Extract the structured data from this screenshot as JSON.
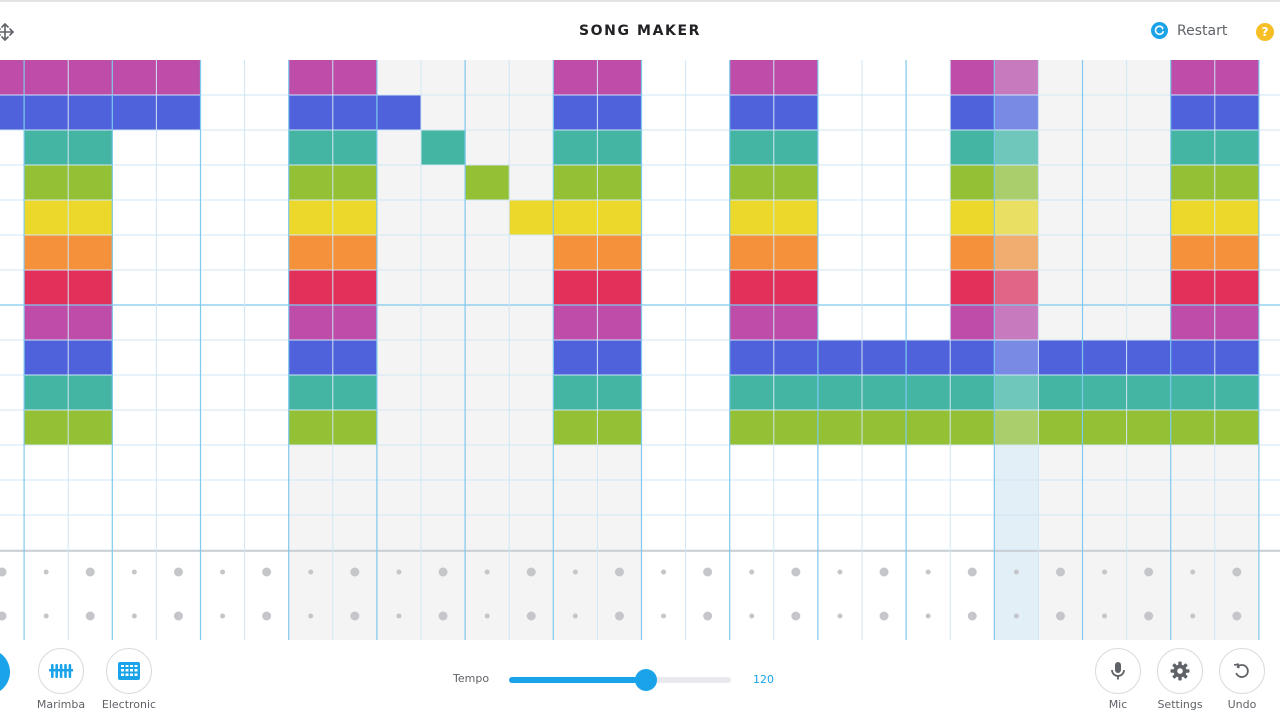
{
  "header": {
    "title": "SONG MAKER",
    "restart_label": "Restart",
    "help_symbol": "?"
  },
  "grid": {
    "columns": 29,
    "melody_rows": 14,
    "rhythm_rows": 2,
    "column_shade_pattern": [
      "white",
      "white",
      "white",
      "white",
      "white",
      "white",
      "white",
      "grey",
      "grey",
      "grey",
      "grey",
      "grey",
      "grey",
      "grey",
      "grey",
      "white",
      "white",
      "white",
      "white",
      "white",
      "white",
      "white",
      "white",
      "grey",
      "grey",
      "grey",
      "grey",
      "grey",
      "grey"
    ],
    "playhead_column": 23,
    "row_colors": [
      "#bd4da8",
      "#4f62dc",
      "#43b5a2",
      "#93c034",
      "#ecd82a",
      "#f6913b",
      "#e1315a",
      "#bd4da8",
      "#4f62dc",
      "#43b5a2",
      "#93c034",
      "#e1315a",
      "#f6913b",
      "#ecd82a"
    ],
    "notes": [
      [
        0,
        0
      ],
      [
        0,
        1
      ],
      [
        1,
        0
      ],
      [
        1,
        1
      ],
      [
        1,
        2
      ],
      [
        1,
        3
      ],
      [
        1,
        4
      ],
      [
        1,
        5
      ],
      [
        1,
        6
      ],
      [
        1,
        7
      ],
      [
        1,
        8
      ],
      [
        1,
        9
      ],
      [
        1,
        10
      ],
      [
        2,
        0
      ],
      [
        2,
        1
      ],
      [
        2,
        2
      ],
      [
        2,
        3
      ],
      [
        2,
        4
      ],
      [
        2,
        5
      ],
      [
        2,
        6
      ],
      [
        2,
        7
      ],
      [
        2,
        8
      ],
      [
        2,
        9
      ],
      [
        2,
        10
      ],
      [
        3,
        0
      ],
      [
        3,
        1
      ],
      [
        4,
        0
      ],
      [
        4,
        1
      ],
      [
        7,
        0
      ],
      [
        7,
        1
      ],
      [
        7,
        2
      ],
      [
        7,
        3
      ],
      [
        7,
        4
      ],
      [
        7,
        5
      ],
      [
        7,
        6
      ],
      [
        7,
        7
      ],
      [
        7,
        8
      ],
      [
        7,
        9
      ],
      [
        7,
        10
      ],
      [
        8,
        0
      ],
      [
        8,
        1
      ],
      [
        8,
        2
      ],
      [
        8,
        3
      ],
      [
        8,
        4
      ],
      [
        8,
        5
      ],
      [
        8,
        6
      ],
      [
        8,
        7
      ],
      [
        8,
        8
      ],
      [
        8,
        9
      ],
      [
        8,
        10
      ],
      [
        9,
        1
      ],
      [
        10,
        2
      ],
      [
        11,
        3
      ],
      [
        12,
        4
      ],
      [
        13,
        0
      ],
      [
        13,
        1
      ],
      [
        13,
        2
      ],
      [
        13,
        3
      ],
      [
        13,
        4
      ],
      [
        13,
        5
      ],
      [
        13,
        6
      ],
      [
        13,
        7
      ],
      [
        13,
        8
      ],
      [
        13,
        9
      ],
      [
        13,
        10
      ],
      [
        14,
        0
      ],
      [
        14,
        1
      ],
      [
        14,
        2
      ],
      [
        14,
        3
      ],
      [
        14,
        4
      ],
      [
        14,
        5
      ],
      [
        14,
        6
      ],
      [
        14,
        7
      ],
      [
        14,
        8
      ],
      [
        14,
        9
      ],
      [
        14,
        10
      ],
      [
        17,
        0
      ],
      [
        17,
        1
      ],
      [
        17,
        2
      ],
      [
        17,
        3
      ],
      [
        17,
        4
      ],
      [
        17,
        5
      ],
      [
        17,
        6
      ],
      [
        17,
        7
      ],
      [
        17,
        8
      ],
      [
        17,
        9
      ],
      [
        17,
        10
      ],
      [
        18,
        0
      ],
      [
        18,
        1
      ],
      [
        18,
        2
      ],
      [
        18,
        3
      ],
      [
        18,
        4
      ],
      [
        18,
        5
      ],
      [
        18,
        6
      ],
      [
        18,
        7
      ],
      [
        18,
        8
      ],
      [
        18,
        9
      ],
      [
        18,
        10
      ],
      [
        19,
        8
      ],
      [
        19,
        9
      ],
      [
        19,
        10
      ],
      [
        20,
        8
      ],
      [
        20,
        9
      ],
      [
        20,
        10
      ],
      [
        21,
        8
      ],
      [
        21,
        9
      ],
      [
        21,
        10
      ],
      [
        22,
        0
      ],
      [
        22,
        1
      ],
      [
        22,
        2
      ],
      [
        22,
        3
      ],
      [
        22,
        4
      ],
      [
        22,
        5
      ],
      [
        22,
        6
      ],
      [
        22,
        7
      ],
      [
        22,
        8
      ],
      [
        22,
        9
      ],
      [
        22,
        10
      ],
      [
        23,
        0
      ],
      [
        23,
        1
      ],
      [
        23,
        2
      ],
      [
        23,
        3
      ],
      [
        23,
        4
      ],
      [
        23,
        5
      ],
      [
        23,
        6
      ],
      [
        23,
        7
      ],
      [
        23,
        8
      ],
      [
        23,
        9
      ],
      [
        23,
        10
      ],
      [
        24,
        8
      ],
      [
        24,
        9
      ],
      [
        24,
        10
      ],
      [
        25,
        8
      ],
      [
        25,
        9
      ],
      [
        25,
        10
      ],
      [
        26,
        8
      ],
      [
        26,
        9
      ],
      [
        26,
        10
      ],
      [
        27,
        0
      ],
      [
        27,
        1
      ],
      [
        27,
        2
      ],
      [
        27,
        3
      ],
      [
        27,
        4
      ],
      [
        27,
        5
      ],
      [
        27,
        6
      ],
      [
        27,
        7
      ],
      [
        27,
        8
      ],
      [
        27,
        9
      ],
      [
        27,
        10
      ],
      [
        28,
        0
      ],
      [
        28,
        1
      ],
      [
        28,
        2
      ],
      [
        28,
        3
      ],
      [
        28,
        4
      ],
      [
        28,
        5
      ],
      [
        28,
        6
      ],
      [
        28,
        7
      ],
      [
        28,
        8
      ],
      [
        28,
        9
      ],
      [
        28,
        10
      ]
    ]
  },
  "footer": {
    "instruments": [
      {
        "label": "Marimba",
        "icon": "marimba-icon"
      },
      {
        "label": "Electronic",
        "icon": "electronic-drum-icon"
      }
    ],
    "tempo_label": "Tempo",
    "tempo_value": "120",
    "tempo_fraction": 0.615,
    "right_buttons": [
      {
        "label": "Mic",
        "icon": "mic-icon"
      },
      {
        "label": "Settings",
        "icon": "gear-icon"
      },
      {
        "label": "Undo",
        "icon": "undo-icon"
      }
    ]
  },
  "colors": {
    "accent": "#1aa3e8",
    "help": "#f6bf26",
    "grid_line": "#cfe6f4",
    "bar_line": "#7fc9ee",
    "grey_column": "#f4f4f4",
    "playhead": "#e3eff7"
  }
}
